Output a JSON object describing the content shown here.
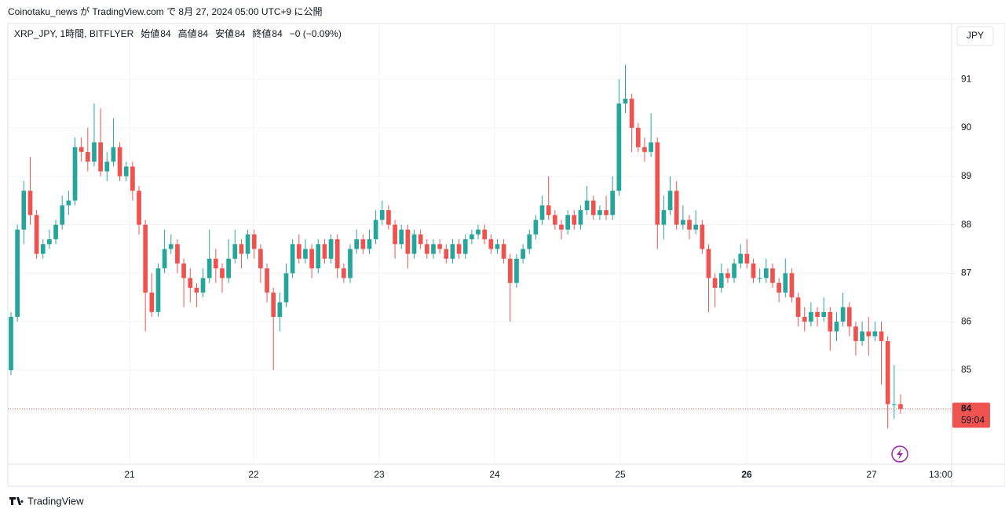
{
  "header": "Coinotaku_news が TradingView.com で 8月 27, 2024 05:00 UTC+9 に公開",
  "chart_data": {
    "type": "candlestick",
    "symbol": "XRP_JPY, 1時間, BITFLYER",
    "ohlc_legend": [
      {
        "name": "始値",
        "value": 84
      },
      {
        "name": "高値",
        "value": 84
      },
      {
        "name": "安値",
        "value": 84
      },
      {
        "name": "終値",
        "value": 84
      }
    ],
    "change": "−0 (−0.09%)",
    "currency": "JPY",
    "last_price": 84,
    "countdown": "59:04",
    "up_color": "#26a69a",
    "down_color": "#ef5350",
    "grid": true,
    "ylim": [
      83.06,
      92.15
    ],
    "yticks": [
      85,
      86,
      87,
      88,
      89,
      90,
      91
    ],
    "x_labels": [
      "21",
      "22",
      "23",
      "24",
      "25",
      "26",
      "27",
      "13:00"
    ],
    "ohlc": [
      [
        85.0,
        86.2,
        84.9,
        86.1
      ],
      [
        86.1,
        88.0,
        86.0,
        87.9
      ],
      [
        87.9,
        88.9,
        87.6,
        88.7
      ],
      [
        88.7,
        89.4,
        88.0,
        88.2
      ],
      [
        88.2,
        88.3,
        87.3,
        87.4
      ],
      [
        87.4,
        87.7,
        87.3,
        87.6
      ],
      [
        87.6,
        87.9,
        87.5,
        87.7
      ],
      [
        87.7,
        88.1,
        87.6,
        88.0
      ],
      [
        88.0,
        88.6,
        87.9,
        88.4
      ],
      [
        88.4,
        88.7,
        88.2,
        88.5
      ],
      [
        88.5,
        89.8,
        88.4,
        89.6
      ],
      [
        89.6,
        89.8,
        89.3,
        89.5
      ],
      [
        89.5,
        90.0,
        89.1,
        89.3
      ],
      [
        89.3,
        90.5,
        89.2,
        89.7
      ],
      [
        89.7,
        90.4,
        89.0,
        89.1
      ],
      [
        89.1,
        89.5,
        88.9,
        89.3
      ],
      [
        89.3,
        90.2,
        89.2,
        89.6
      ],
      [
        89.6,
        89.7,
        88.9,
        89.0
      ],
      [
        89.0,
        89.3,
        88.9,
        89.2
      ],
      [
        89.2,
        89.3,
        88.5,
        88.7
      ],
      [
        88.7,
        88.8,
        87.8,
        88.0
      ],
      [
        88.0,
        88.1,
        85.8,
        86.6
      ],
      [
        86.6,
        87.0,
        86.1,
        86.2
      ],
      [
        86.2,
        87.2,
        86.1,
        87.1
      ],
      [
        87.1,
        87.9,
        87.0,
        87.5
      ],
      [
        87.5,
        87.8,
        87.4,
        87.6
      ],
      [
        87.6,
        87.7,
        87.0,
        87.2
      ],
      [
        87.2,
        87.3,
        86.3,
        86.9
      ],
      [
        86.9,
        87.1,
        86.4,
        86.7
      ],
      [
        86.7,
        86.8,
        86.3,
        86.6
      ],
      [
        86.6,
        87.1,
        86.5,
        86.9
      ],
      [
        86.9,
        87.9,
        86.8,
        87.3
      ],
      [
        87.3,
        87.5,
        86.8,
        87.1
      ],
      [
        87.1,
        87.2,
        86.6,
        86.9
      ],
      [
        86.9,
        87.7,
        86.8,
        87.3
      ],
      [
        87.3,
        87.9,
        87.2,
        87.6
      ],
      [
        87.6,
        87.7,
        87.1,
        87.4
      ],
      [
        87.4,
        87.9,
        87.3,
        87.8
      ],
      [
        87.8,
        87.9,
        87.3,
        87.5
      ],
      [
        87.5,
        87.6,
        86.8,
        87.1
      ],
      [
        87.1,
        87.2,
        86.4,
        86.6
      ],
      [
        86.6,
        86.7,
        85.0,
        86.1
      ],
      [
        86.1,
        86.6,
        85.8,
        86.4
      ],
      [
        86.4,
        87.2,
        86.3,
        87.0
      ],
      [
        87.0,
        87.7,
        86.9,
        87.6
      ],
      [
        87.6,
        87.8,
        87.2,
        87.3
      ],
      [
        87.3,
        87.7,
        87.2,
        87.5
      ],
      [
        87.5,
        87.6,
        86.9,
        87.1
      ],
      [
        87.1,
        87.7,
        87.0,
        87.6
      ],
      [
        87.6,
        87.7,
        87.2,
        87.3
      ],
      [
        87.3,
        87.8,
        87.2,
        87.7
      ],
      [
        87.7,
        87.8,
        86.9,
        87.1
      ],
      [
        87.1,
        87.2,
        86.8,
        86.9
      ],
      [
        86.9,
        87.6,
        86.8,
        87.5
      ],
      [
        87.5,
        87.9,
        87.4,
        87.7
      ],
      [
        87.7,
        87.8,
        87.4,
        87.5
      ],
      [
        87.5,
        87.9,
        87.4,
        87.7
      ],
      [
        87.7,
        88.3,
        87.6,
        88.1
      ],
      [
        88.1,
        88.5,
        88.0,
        88.3
      ],
      [
        88.3,
        88.4,
        87.9,
        88.0
      ],
      [
        88.0,
        88.1,
        87.3,
        87.6
      ],
      [
        87.6,
        88.0,
        87.5,
        87.9
      ],
      [
        87.9,
        88.0,
        87.1,
        87.4
      ],
      [
        87.4,
        87.9,
        87.3,
        87.8
      ],
      [
        87.8,
        87.9,
        87.5,
        87.6
      ],
      [
        87.6,
        87.7,
        87.3,
        87.4
      ],
      [
        87.4,
        87.7,
        87.3,
        87.6
      ],
      [
        87.6,
        87.7,
        87.4,
        87.5
      ],
      [
        87.5,
        87.6,
        87.2,
        87.3
      ],
      [
        87.3,
        87.7,
        87.2,
        87.6
      ],
      [
        87.6,
        87.7,
        87.3,
        87.4
      ],
      [
        87.4,
        87.8,
        87.3,
        87.7
      ],
      [
        87.7,
        87.9,
        87.6,
        87.8
      ],
      [
        87.8,
        88.0,
        87.7,
        87.9
      ],
      [
        87.9,
        88.0,
        87.6,
        87.7
      ],
      [
        87.7,
        87.8,
        87.4,
        87.5
      ],
      [
        87.5,
        87.7,
        87.4,
        87.6
      ],
      [
        87.6,
        87.7,
        87.2,
        87.3
      ],
      [
        87.3,
        87.4,
        86.0,
        86.8
      ],
      [
        86.8,
        87.4,
        86.7,
        87.3
      ],
      [
        87.3,
        87.6,
        87.2,
        87.5
      ],
      [
        87.5,
        87.9,
        87.4,
        87.8
      ],
      [
        87.8,
        88.2,
        87.7,
        88.1
      ],
      [
        88.1,
        88.6,
        88.0,
        88.4
      ],
      [
        88.4,
        89.0,
        88.1,
        88.2
      ],
      [
        88.2,
        88.3,
        87.9,
        88.0
      ],
      [
        88.0,
        88.1,
        87.7,
        87.9
      ],
      [
        87.9,
        88.3,
        87.8,
        88.2
      ],
      [
        88.2,
        88.3,
        87.9,
        88.0
      ],
      [
        88.0,
        88.4,
        87.9,
        88.3
      ],
      [
        88.3,
        88.8,
        88.2,
        88.5
      ],
      [
        88.5,
        88.6,
        88.1,
        88.2
      ],
      [
        88.2,
        88.4,
        88.1,
        88.3
      ],
      [
        88.3,
        88.6,
        88.1,
        88.2
      ],
      [
        88.2,
        89.0,
        88.1,
        88.7
      ],
      [
        88.7,
        91.0,
        88.6,
        90.5
      ],
      [
        90.5,
        91.3,
        90.3,
        90.6
      ],
      [
        90.6,
        90.7,
        89.5,
        90.0
      ],
      [
        90.0,
        90.1,
        89.5,
        89.6
      ],
      [
        89.6,
        89.8,
        89.3,
        89.5
      ],
      [
        89.5,
        90.3,
        89.4,
        89.7
      ],
      [
        89.7,
        89.8,
        87.5,
        88.0
      ],
      [
        88.0,
        88.6,
        87.7,
        88.3
      ],
      [
        88.3,
        89.0,
        88.2,
        88.7
      ],
      [
        88.7,
        88.9,
        87.9,
        88.0
      ],
      [
        88.0,
        88.4,
        87.9,
        88.1
      ],
      [
        88.1,
        88.2,
        87.7,
        87.9
      ],
      [
        87.9,
        88.3,
        87.8,
        88.0
      ],
      [
        88.0,
        88.1,
        87.4,
        87.5
      ],
      [
        87.5,
        87.6,
        86.2,
        86.9
      ],
      [
        86.9,
        87.0,
        86.3,
        86.7
      ],
      [
        86.7,
        87.2,
        86.6,
        87.0
      ],
      [
        87.0,
        87.1,
        86.8,
        86.9
      ],
      [
        86.9,
        87.3,
        86.8,
        87.2
      ],
      [
        87.2,
        87.6,
        87.1,
        87.4
      ],
      [
        87.4,
        87.7,
        87.1,
        87.2
      ],
      [
        87.2,
        87.3,
        86.8,
        86.9
      ],
      [
        86.9,
        87.1,
        86.8,
        86.9
      ],
      [
        86.9,
        87.3,
        86.8,
        87.1
      ],
      [
        87.1,
        87.2,
        86.7,
        86.8
      ],
      [
        86.8,
        86.9,
        86.4,
        86.6
      ],
      [
        86.6,
        87.3,
        86.5,
        87.0
      ],
      [
        87.0,
        87.1,
        86.4,
        86.5
      ],
      [
        86.5,
        86.6,
        85.9,
        86.1
      ],
      [
        86.1,
        86.3,
        85.8,
        86.0
      ],
      [
        86.0,
        86.4,
        85.9,
        86.2
      ],
      [
        86.2,
        86.3,
        85.9,
        86.1
      ],
      [
        86.1,
        86.5,
        86.0,
        86.2
      ],
      [
        86.2,
        86.3,
        85.4,
        85.8
      ],
      [
        85.8,
        86.2,
        85.6,
        86.0
      ],
      [
        86.0,
        86.6,
        85.9,
        86.3
      ],
      [
        86.3,
        86.4,
        85.7,
        85.9
      ],
      [
        85.9,
        86.0,
        85.3,
        85.6
      ],
      [
        85.6,
        86.0,
        85.5,
        85.8
      ],
      [
        85.8,
        86.1,
        85.3,
        85.7
      ],
      [
        85.7,
        86.0,
        85.6,
        85.8
      ],
      [
        85.8,
        86.0,
        84.7,
        85.6
      ],
      [
        85.6,
        85.7,
        83.8,
        84.3
      ],
      [
        84.3,
        85.1,
        84.0,
        84.3
      ],
      [
        84.3,
        84.5,
        84.1,
        84.2
      ]
    ]
  },
  "footer": "TradingView"
}
